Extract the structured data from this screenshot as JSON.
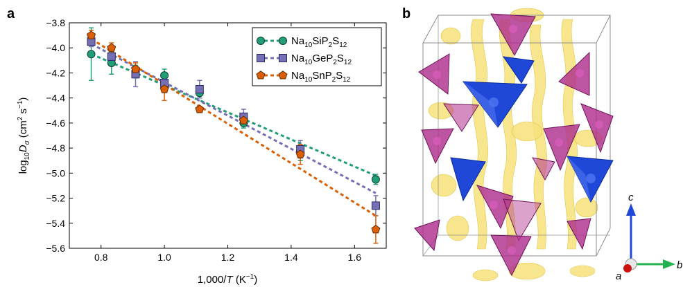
{
  "panels": {
    "a": "a",
    "b": "b"
  },
  "chart_data": {
    "type": "scatter",
    "xlabel": {
      "prefix": "1,000/",
      "var": "T",
      "unit_pre": " (K",
      "unit_sup": "−1",
      "unit_post": ")"
    },
    "ylabel": {
      "prefix": "log",
      "sub": "10",
      "var": "D",
      "var_sub": "σ",
      "unit_pre": " (cm",
      "unit_sup1": "2",
      "unit_mid": " s",
      "unit_sup2": "−1",
      "unit_post": ")"
    },
    "xlim": [
      0.7,
      1.7
    ],
    "ylim": [
      -5.6,
      -3.8
    ],
    "xticks": [
      0.8,
      1.0,
      1.2,
      1.4,
      1.6
    ],
    "xtick_labels": [
      "0.8",
      "1.0",
      "1.2",
      "1.4",
      "1.6"
    ],
    "yticks": [
      -3.8,
      -4.0,
      -4.2,
      -4.4,
      -4.6,
      -4.8,
      -5.0,
      -5.2,
      -5.4,
      -5.6
    ],
    "ytick_labels": [
      "−3.8",
      "−4.0",
      "−4.2",
      "−4.4",
      "−4.6",
      "−4.8",
      "−5.0",
      "−5.2",
      "−5.4",
      "−5.6"
    ],
    "legend_position": "top-right",
    "series": [
      {
        "name": "Na10SiP2S12",
        "label_parts": [
          "Na",
          "10",
          "SiP",
          "2",
          "S",
          "12"
        ],
        "color": "#1f9e78",
        "edge": "#0b3d2e",
        "marker": "circle",
        "x": [
          0.769,
          0.833,
          0.909,
          1.0,
          1.111,
          1.25,
          1.429,
          1.667
        ],
        "y": [
          -4.05,
          -4.12,
          -4.19,
          -4.22,
          -4.36,
          -4.6,
          -4.84,
          -5.05
        ],
        "err": [
          0.21,
          0.09,
          0.05,
          0.05,
          0.04,
          0.04,
          0.06,
          0.04
        ],
        "fit": [
          [
            0.77,
            -4.05
          ],
          [
            1.667,
            -5.02
          ]
        ]
      },
      {
        "name": "Na10GeP2S12",
        "label_parts": [
          "Na",
          "10",
          "GeP",
          "2",
          "S",
          "12"
        ],
        "color": "#7570b3",
        "edge": "#2b2866",
        "marker": "square",
        "x": [
          0.769,
          0.833,
          0.909,
          1.0,
          1.111,
          1.25,
          1.429,
          1.667
        ],
        "y": [
          -3.95,
          -4.07,
          -4.21,
          -4.28,
          -4.33,
          -4.55,
          -4.81,
          -5.26
        ],
        "err": [
          0.04,
          0.05,
          0.1,
          0.07,
          0.07,
          0.06,
          0.07,
          0.08
        ],
        "fit": [
          [
            0.77,
            -3.97
          ],
          [
            1.667,
            -5.16
          ]
        ]
      },
      {
        "name": "Na10SnP2S12",
        "label_parts": [
          "Na",
          "10",
          "SnP",
          "2",
          "S",
          "12"
        ],
        "color": "#d95f02",
        "edge": "#6b2a00",
        "marker": "pentagon",
        "x": [
          0.769,
          0.833,
          0.909,
          1.0,
          1.111,
          1.25,
          1.429,
          1.667
        ],
        "y": [
          -3.9,
          -4.0,
          -4.17,
          -4.33,
          -4.49,
          -4.58,
          -4.85,
          -5.45
        ],
        "err": [
          0.04,
          0.04,
          0.05,
          0.09,
          0.02,
          0.03,
          0.08,
          0.11
        ],
        "fit": [
          [
            0.77,
            -3.93
          ],
          [
            1.667,
            -5.34
          ]
        ]
      }
    ]
  },
  "structure": {
    "axes_labels": {
      "c": "c",
      "b": "b",
      "a": "a"
    },
    "colors": {
      "isosurface": "#f7e27a",
      "tetra_pink": "#b0308e",
      "tetra_blue": "#1f48d8",
      "axis_c": "#1f48d8",
      "axis_b": "#22b14c",
      "axis_a": "#cc1111"
    }
  }
}
